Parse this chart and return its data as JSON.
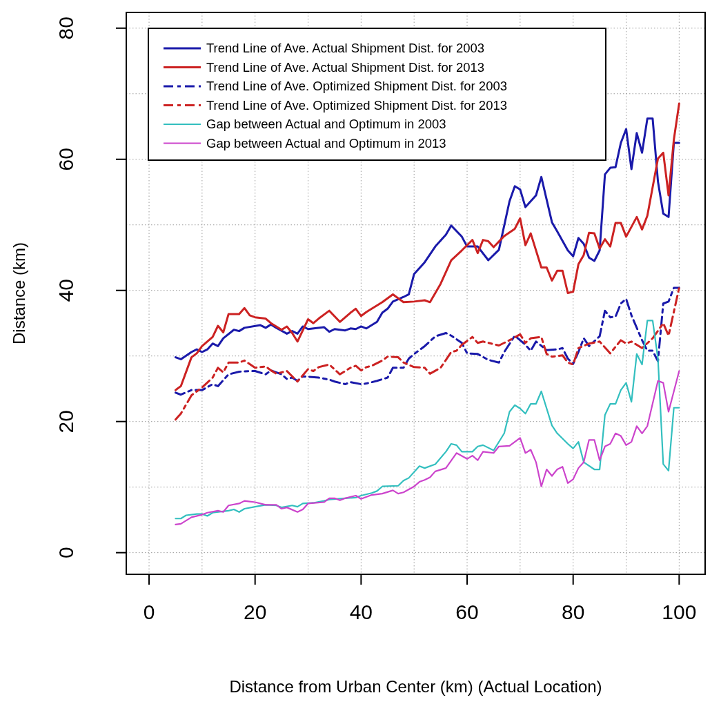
{
  "chart_data": {
    "type": "line",
    "xlabel": "Distance from Urban Center (km) (Actual Location)",
    "ylabel": "Distance (km)",
    "xlim": [
      -4.3,
      104.9
    ],
    "ylim": [
      -3.3,
      82.4
    ],
    "xticks": [
      0,
      {
        "value": 10,
        "label": null
      },
      20,
      {
        "value": 30,
        "label": null
      },
      40,
      {
        "value": 50,
        "label": null
      },
      60,
      {
        "value": 70,
        "label": null
      },
      80,
      {
        "value": 90,
        "label": null
      },
      100
    ],
    "yticks": [
      0,
      {
        "value": 10,
        "label": null
      },
      20,
      {
        "value": 30,
        "label": null
      },
      40,
      {
        "value": 50,
        "label": null
      },
      60,
      {
        "value": 70,
        "label": null
      },
      80
    ],
    "grid": true,
    "legend": "top left",
    "marker": "none",
    "series": [
      {
        "name": "Trend Line of Ave. Actual Shipment Dist. for 2003",
        "color": "#1a1aaa",
        "line_style": "solid",
        "x": [
          5,
          6,
          8,
          9,
          10,
          11,
          12,
          13,
          14,
          16,
          17,
          18,
          21,
          22,
          23,
          24,
          26,
          27,
          28,
          29,
          30,
          33,
          34,
          35,
          37,
          38,
          39,
          40,
          41,
          43,
          44,
          45,
          46,
          48,
          49,
          50,
          52,
          54,
          56,
          57,
          59,
          60,
          61,
          62,
          64,
          66,
          68,
          69,
          70,
          71,
          73,
          74,
          76,
          77,
          79,
          80,
          81,
          82,
          83,
          84,
          85,
          86,
          87,
          88,
          89,
          90,
          91,
          92,
          93,
          94,
          95,
          96,
          97,
          98,
          99,
          100
        ],
        "values": [
          29.8,
          29.5,
          30.6,
          31,
          30.6,
          31,
          31.9,
          31.5,
          32.7,
          34,
          33.8,
          34.3,
          34.7,
          34.3,
          34.8,
          34.3,
          33.4,
          33.8,
          33.4,
          34.5,
          34.1,
          34.4,
          33.7,
          34.1,
          33.9,
          34.2,
          34.1,
          34.5,
          34.2,
          35.2,
          36.6,
          37.2,
          38.3,
          39,
          39.4,
          42.5,
          44.3,
          46.7,
          48.5,
          49.9,
          48.2,
          46.7,
          46.7,
          46.7,
          44.6,
          46.2,
          53.6,
          55.9,
          55.4,
          52.7,
          54.5,
          57.3,
          50.4,
          49,
          46.1,
          45.2,
          48,
          47.1,
          45,
          44.5,
          46.1,
          57.7,
          58.7,
          58.8,
          62.5,
          64.6,
          58.5,
          64,
          61,
          66.2,
          66.2,
          56.6,
          51.7,
          51.2,
          62.5,
          62.5
        ]
      },
      {
        "name": "Trend Line of Ave. Actual Shipment Dist. for 2013",
        "color": "#cc2222",
        "line_style": "solid",
        "x": [
          5,
          6,
          8,
          9,
          10,
          12,
          13,
          14,
          15,
          17,
          18,
          19,
          20,
          22,
          23,
          24,
          25,
          26,
          27,
          28,
          30,
          31,
          32,
          34,
          36,
          38,
          39,
          40,
          41,
          43,
          44,
          46,
          48,
          50,
          52,
          53,
          55,
          57,
          59,
          61,
          62,
          63,
          64,
          65,
          67,
          69,
          70,
          71,
          72,
          74,
          75,
          76,
          77,
          78,
          79,
          80,
          81,
          82,
          83,
          84,
          85,
          86,
          87,
          88,
          89,
          90,
          92,
          93,
          94,
          96,
          97,
          98,
          99,
          100
        ],
        "values": [
          24.8,
          25.4,
          29.8,
          30.4,
          31.5,
          32.9,
          34.6,
          33.6,
          36.4,
          36.4,
          37.3,
          36.2,
          35.9,
          35.7,
          35,
          34.5,
          34,
          34.5,
          33.5,
          32.2,
          35.6,
          35,
          35.7,
          36.9,
          35.2,
          36.6,
          37.2,
          36.1,
          36.7,
          37.7,
          38.2,
          39.4,
          38.2,
          38.3,
          38.5,
          38.2,
          41,
          44.6,
          46.1,
          47.7,
          45.7,
          47.7,
          47.5,
          46.6,
          48.3,
          49.4,
          51,
          46.9,
          48.7,
          43.5,
          43.5,
          41.5,
          43,
          43,
          39.6,
          39.8,
          44,
          45.4,
          48.8,
          48.7,
          46.4,
          47.8,
          46.7,
          50.3,
          50.3,
          48.2,
          51.2,
          49.3,
          51.4,
          60.1,
          61,
          54.5,
          63,
          68.5
        ]
      },
      {
        "name": "Trend Line of Ave. Optimized Shipment Dist. for 2003",
        "color": "#1a1aaa",
        "line_style": "dashed",
        "x": [
          5,
          6,
          8,
          10,
          12,
          13,
          15,
          17,
          19,
          20,
          22,
          23,
          25,
          26,
          27,
          28,
          29,
          32,
          34,
          35,
          37,
          38,
          40,
          41,
          43,
          45,
          46,
          48,
          49,
          50,
          52,
          54,
          56,
          57,
          59,
          60,
          62,
          64,
          66,
          67,
          69,
          71,
          72,
          73,
          75,
          77,
          78,
          79,
          80,
          81,
          82,
          83,
          85,
          86,
          87,
          88,
          89,
          90,
          91,
          93,
          94,
          95,
          96,
          97,
          98,
          99,
          100
        ],
        "values": [
          24.4,
          24.1,
          24.8,
          24.8,
          25.7,
          25.4,
          27.2,
          27.6,
          27.7,
          27.7,
          27.2,
          27.8,
          27.2,
          26.5,
          26.7,
          26.2,
          26.9,
          26.7,
          26.4,
          26.1,
          25.7,
          26,
          25.7,
          25.8,
          26.2,
          26.7,
          28.2,
          28.2,
          29.6,
          30.3,
          31.5,
          33,
          33.5,
          33.1,
          32,
          30.4,
          30.3,
          29.4,
          29,
          30.6,
          33.1,
          31.7,
          30.8,
          32.2,
          30.9,
          31,
          31.2,
          29.6,
          28.8,
          30.6,
          32.7,
          31.5,
          33,
          36.9,
          35.9,
          36,
          38,
          38.7,
          36.2,
          32.4,
          30.8,
          30.8,
          29.2,
          38,
          38.3,
          40.4,
          40.4
        ]
      },
      {
        "name": "Trend Line of Ave. Optimized Shipment Dist. for 2013",
        "color": "#cc2222",
        "line_style": "dashed",
        "x": [
          5,
          6,
          8,
          9,
          10,
          12,
          13,
          14,
          15,
          17,
          18,
          20,
          22,
          23,
          24,
          26,
          28,
          30,
          31,
          32,
          34,
          36,
          38,
          39,
          40,
          41,
          42,
          44,
          45,
          47,
          48,
          50,
          52,
          53,
          55,
          57,
          58,
          59,
          61,
          62,
          63,
          66,
          68,
          70,
          71,
          72,
          74,
          75,
          76,
          78,
          79,
          80,
          81,
          83,
          85,
          87,
          89,
          90,
          91,
          93,
          95,
          97,
          98,
          100
        ],
        "values": [
          20.3,
          21.2,
          24,
          24.6,
          25.2,
          26.7,
          28.2,
          27.5,
          29,
          29,
          29.3,
          28.2,
          28.4,
          27.8,
          27.3,
          27.7,
          26.1,
          28,
          27.7,
          28.3,
          28.7,
          27.2,
          28.2,
          28.5,
          27.8,
          28.3,
          28.5,
          29.3,
          29.9,
          29.8,
          29,
          28.3,
          28.2,
          27.3,
          28.2,
          30.6,
          30.8,
          31.7,
          32.9,
          32,
          32.2,
          31.6,
          32.4,
          33.3,
          32,
          32.7,
          32.9,
          30.3,
          29.9,
          30.1,
          29,
          28.7,
          31.2,
          31.9,
          32.2,
          30.4,
          32.4,
          31.9,
          32.2,
          31.2,
          32.7,
          35,
          33.1,
          40.4
        ]
      },
      {
        "name": "Gap between Actual and Optimum in 2003",
        "color": "#33bfbf",
        "line_style": "solid",
        "x": [
          5,
          6,
          7,
          9,
          10,
          11,
          12,
          15,
          16,
          17,
          18,
          20,
          22,
          24,
          25,
          27,
          28,
          29,
          31,
          33,
          34,
          37,
          39,
          40,
          42,
          43,
          44,
          47,
          48,
          49,
          51,
          52,
          54,
          56,
          57,
          58,
          59,
          61,
          62,
          63,
          65,
          67,
          68,
          69,
          70,
          71,
          72,
          73,
          74,
          76,
          77,
          79,
          80,
          81,
          82,
          84,
          85,
          86,
          87,
          88,
          89,
          90,
          91,
          92,
          93,
          94,
          95,
          96,
          97,
          98,
          99,
          100
        ],
        "values": [
          5.2,
          5.2,
          5.7,
          5.9,
          5.9,
          5.6,
          6.1,
          6.4,
          6.6,
          6.2,
          6.7,
          7,
          7.3,
          7.2,
          6.9,
          7.2,
          7,
          7.5,
          7.6,
          7.9,
          8.1,
          8.3,
          8.4,
          8.7,
          9.1,
          9.4,
          10.1,
          10.2,
          11,
          11.4,
          13.2,
          12.9,
          13.5,
          15.4,
          16.6,
          16.4,
          15.4,
          15.4,
          16.2,
          16.4,
          15.6,
          18.2,
          21.5,
          22.5,
          22,
          21.2,
          22.7,
          22.7,
          24.6,
          19.4,
          18.2,
          16.6,
          15.9,
          16.9,
          13.8,
          12.7,
          12.7,
          21,
          22.7,
          22.7,
          24.8,
          25.9,
          23,
          30.3,
          28.7,
          35.4,
          35.4,
          29.6,
          13.5,
          12.5,
          22.1,
          22.1
        ]
      },
      {
        "name": "Gap between Actual and Optimum in 2013",
        "color": "#cc44cc",
        "line_style": "solid",
        "x": [
          5,
          6,
          8,
          10,
          11,
          13,
          14,
          15,
          17,
          18,
          19,
          20,
          22,
          24,
          25,
          26,
          28,
          29,
          30,
          33,
          34,
          35,
          36,
          37,
          39,
          40,
          42,
          44,
          46,
          47,
          48,
          50,
          51,
          52,
          53,
          54,
          56,
          58,
          60,
          61,
          62,
          63,
          65,
          66,
          68,
          70,
          71,
          72,
          73,
          74,
          75,
          76,
          77,
          78,
          79,
          80,
          81,
          82,
          83,
          84,
          85,
          86,
          87,
          88,
          89,
          90,
          91,
          92,
          93,
          94,
          96,
          97,
          98,
          100
        ],
        "values": [
          4.3,
          4.4,
          5.4,
          5.8,
          6.1,
          6.4,
          6.2,
          7.2,
          7.5,
          7.9,
          7.8,
          7.7,
          7.3,
          7.3,
          6.7,
          6.9,
          6.2,
          6.6,
          7.5,
          7.7,
          8.3,
          8.3,
          8,
          8.3,
          8.7,
          8.2,
          8.8,
          9,
          9.5,
          9,
          9.2,
          10.1,
          10.8,
          11.1,
          11.5,
          12.4,
          12.9,
          15.2,
          14.3,
          14.8,
          14.1,
          15.4,
          15.2,
          16.2,
          16.3,
          17.5,
          15.2,
          15.7,
          13.8,
          10.1,
          12.7,
          11.7,
          12.7,
          13.1,
          10.6,
          11.2,
          12.9,
          13.8,
          17.2,
          17.2,
          14.1,
          16.2,
          16.6,
          18.2,
          17.8,
          16.4,
          16.9,
          19.3,
          18.2,
          19.3,
          26.2,
          25.9,
          21.5,
          27.7
        ]
      }
    ]
  }
}
